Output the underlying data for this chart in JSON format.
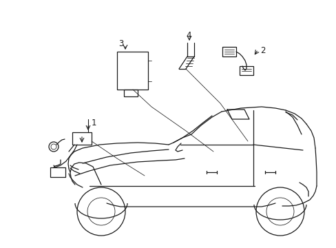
{
  "bg_color": "#ffffff",
  "line_color": "#1a1a1a",
  "lw": 0.9,
  "tlw": 0.55,
  "label_fs": 8.5
}
